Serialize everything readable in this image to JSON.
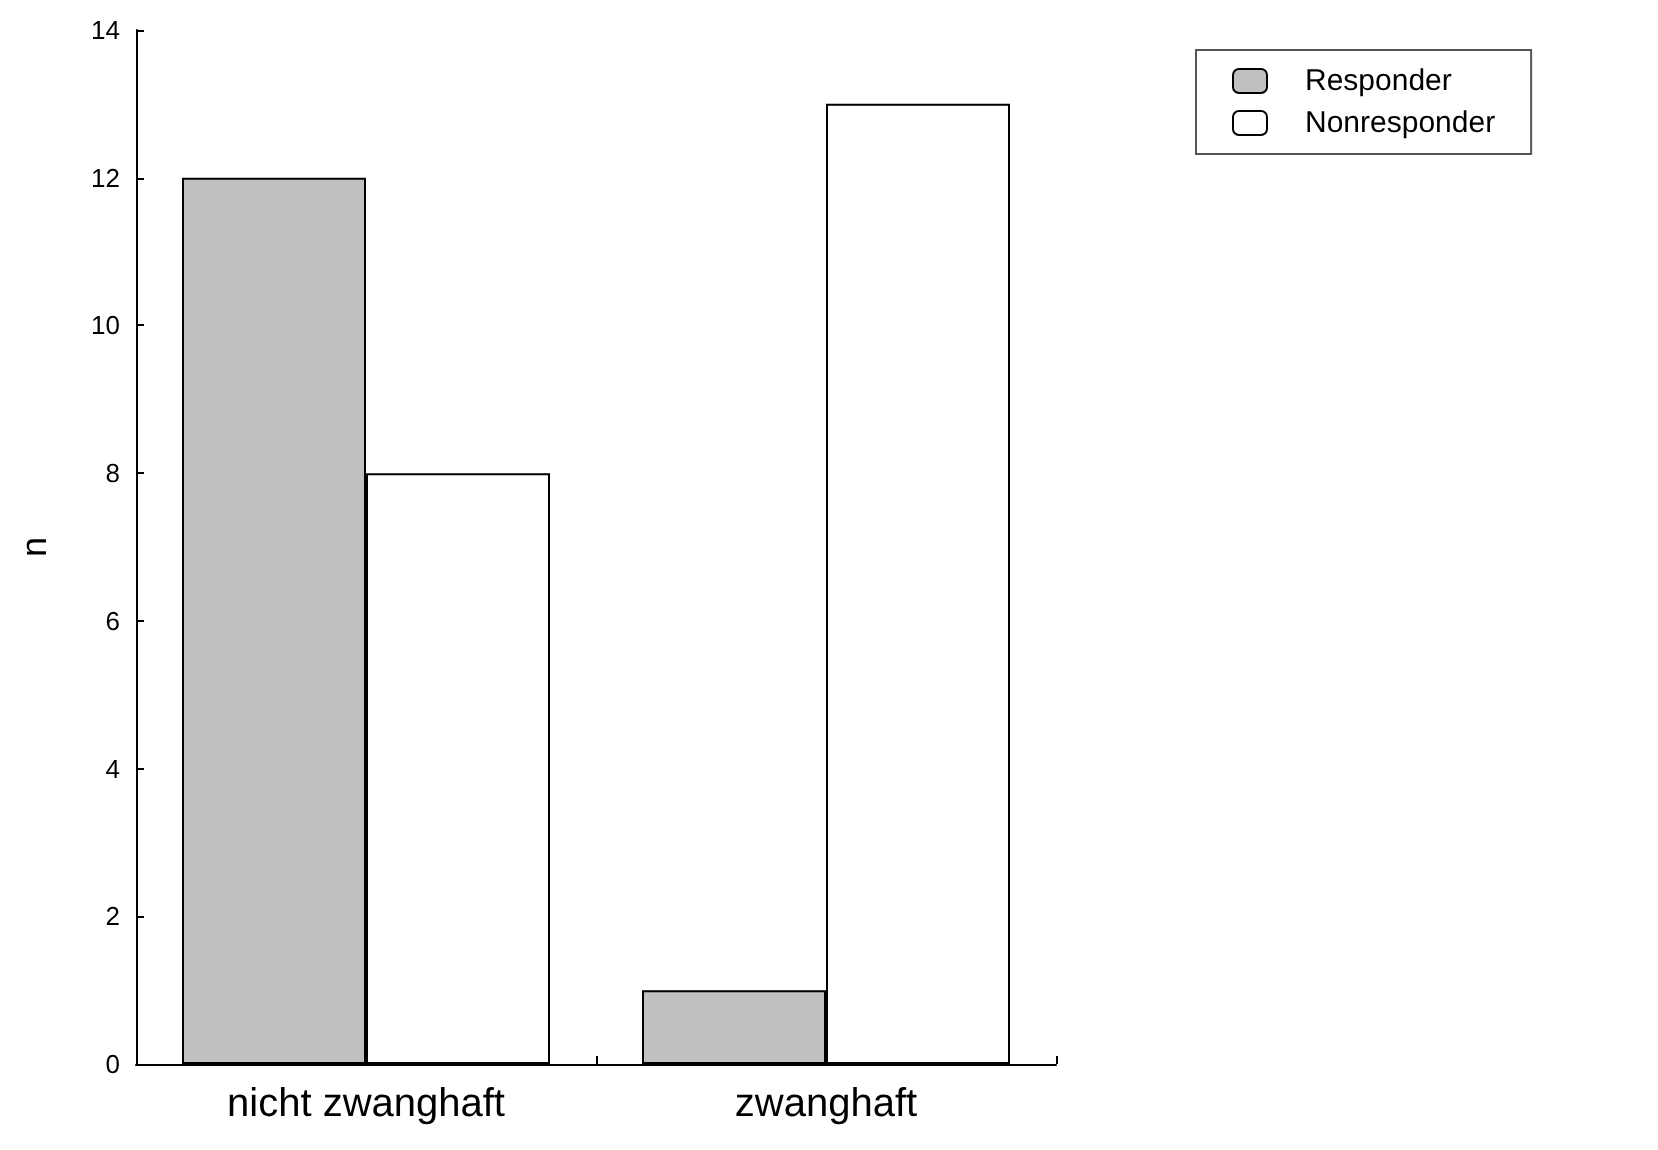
{
  "chart_data": {
    "type": "bar",
    "ylabel": "n",
    "categories": [
      "nicht zwanghaft",
      "zwanghaft"
    ],
    "series": [
      {
        "name": "Responder",
        "color": "#c0c0c0",
        "values": [
          12,
          1
        ]
      },
      {
        "name": "Nonresponder",
        "color": "#ffffff",
        "values": [
          8,
          13
        ]
      }
    ],
    "ylim": [
      0,
      14
    ],
    "yticks": [
      0,
      2,
      4,
      6,
      8,
      10,
      12,
      14
    ],
    "grid": false,
    "legend": "top right"
  }
}
